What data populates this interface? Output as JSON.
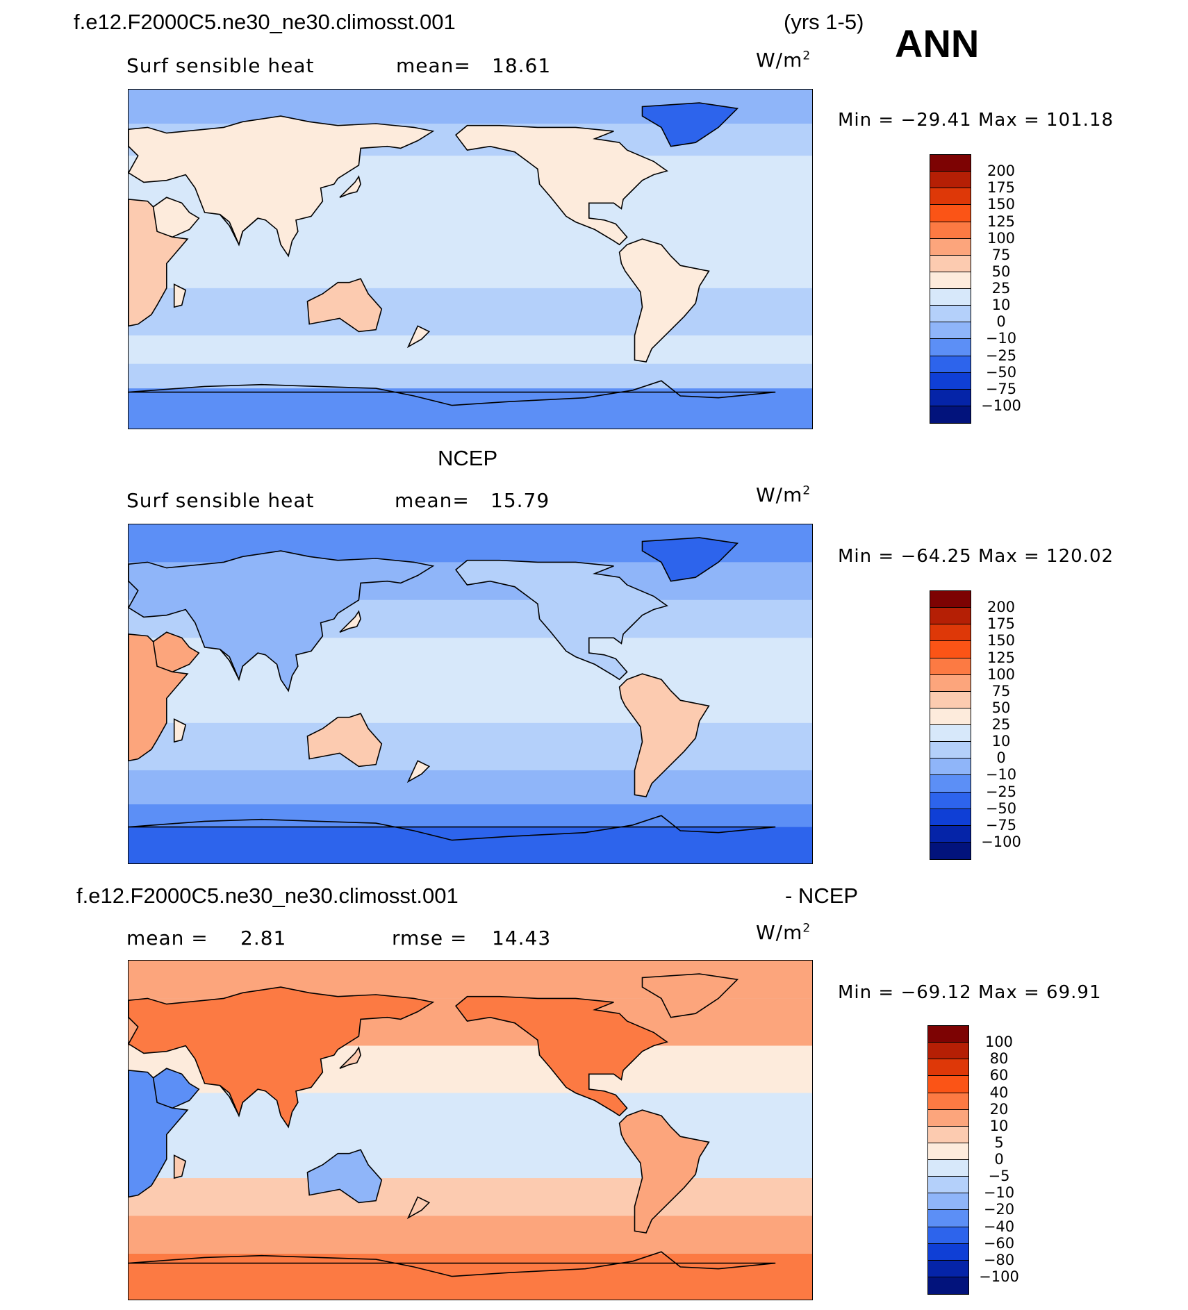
{
  "header": {
    "case_name": "f.e12.F2000C5.ne30_ne30.climosst.001",
    "years": "(yrs 1-5)",
    "season": "ANN"
  },
  "panels": [
    {
      "id": "model",
      "heading": "",
      "variable": "Surf sensible heat",
      "stat_left": "mean=",
      "stat_left_value": "18.61",
      "stat_right": "",
      "stat_right_value": "",
      "units": "W/m",
      "units_sup": "2",
      "min_label": "Min",
      "min_value": "−29.41",
      "max_label": "Max",
      "max_value": "101.18",
      "colorbar_labels": [
        "200",
        "175",
        "150",
        "125",
        "100",
        "75",
        "50",
        "25",
        "10",
        "0",
        "−10",
        "−25",
        "−50",
        "−75",
        "−100"
      ]
    },
    {
      "id": "obs",
      "heading": "NCEP",
      "variable": "Surf sensible heat",
      "stat_left": "mean=",
      "stat_left_value": "15.79",
      "stat_right": "",
      "stat_right_value": "",
      "units": "W/m",
      "units_sup": "2",
      "min_label": "Min",
      "min_value": "−64.25",
      "max_label": "Max",
      "max_value": "120.02",
      "colorbar_labels": [
        "200",
        "175",
        "150",
        "125",
        "100",
        "75",
        "50",
        "25",
        "10",
        "0",
        "−10",
        "−25",
        "−50",
        "−75",
        "−100"
      ]
    },
    {
      "id": "diff",
      "heading_left": "f.e12.F2000C5.ne30_ne30.climosst.001",
      "heading_right": "- NCEP",
      "variable": "",
      "stat_left": "mean =",
      "stat_left_value": "2.81",
      "stat_right": "rmse =",
      "stat_right_value": "14.43",
      "units": "W/m",
      "units_sup": "2",
      "min_label": "Min",
      "min_value": "−69.12",
      "max_label": "Max",
      "max_value": "69.91",
      "colorbar_labels": [
        "100",
        "80",
        "60",
        "40",
        "20",
        "10",
        "5",
        "0",
        "−5",
        "−10",
        "−20",
        "−40",
        "−60",
        "−80",
        "−100"
      ]
    }
  ],
  "colors": {
    "scale_16": [
      "#7d0303",
      "#b51f05",
      "#de3808",
      "#fb5416",
      "#fc7a43",
      "#fca57c",
      "#fccbb0",
      "#fdebdc",
      "#d7e8fa",
      "#b4d0fa",
      "#8fb5f9",
      "#5c8ff6",
      "#2d64ec",
      "#0f3fd6",
      "#0524a8",
      "#02137c"
    ],
    "coast": "#000000"
  }
}
